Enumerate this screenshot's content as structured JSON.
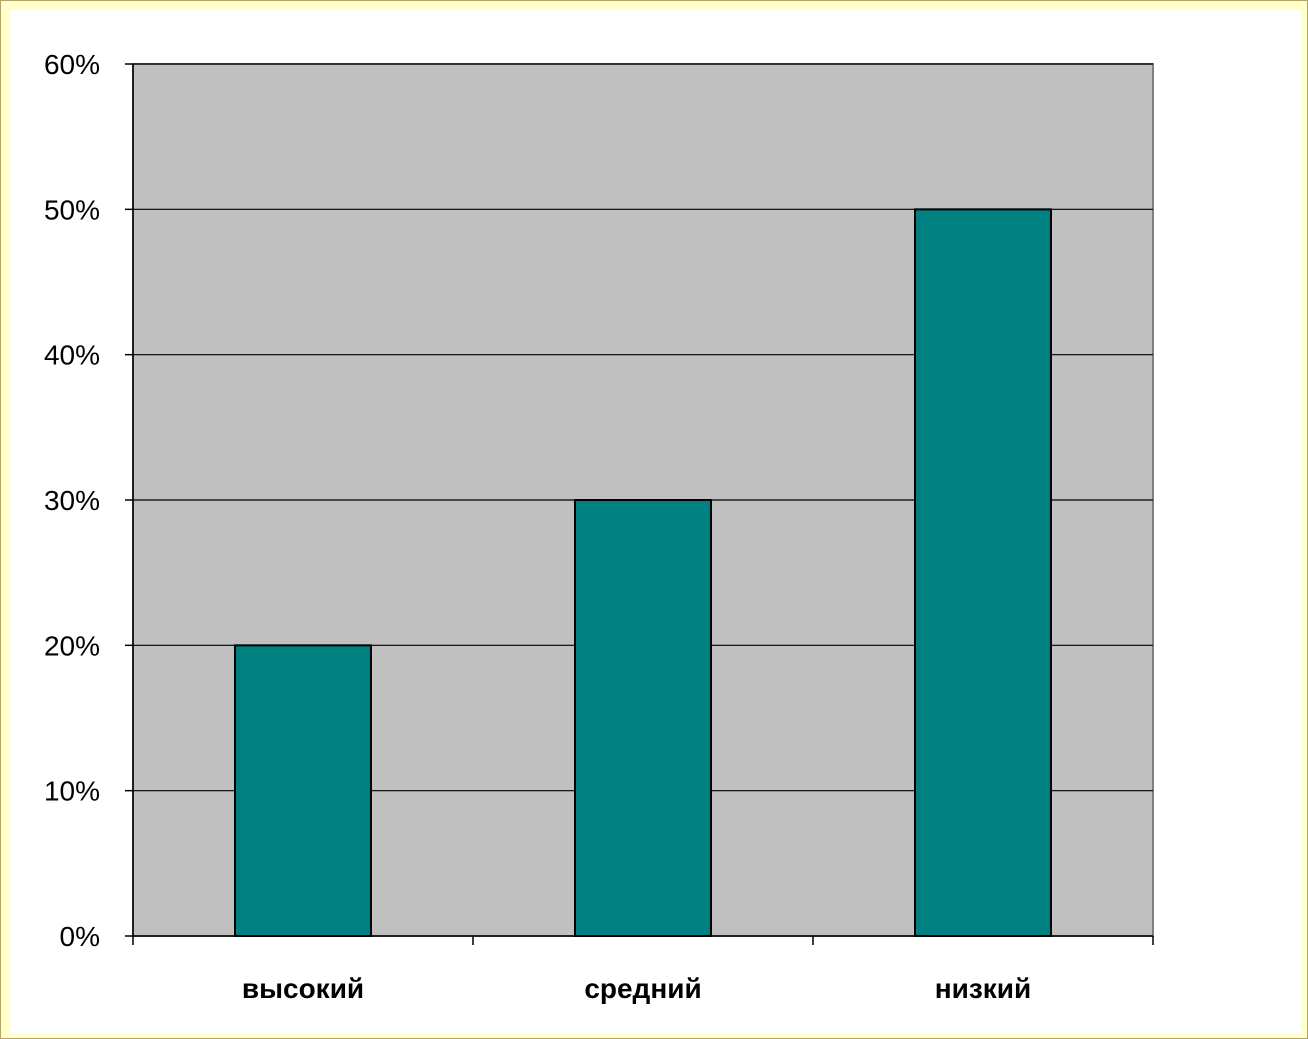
{
  "chart_data": {
    "type": "bar",
    "categories": [
      "высокий",
      "средний",
      "низкий"
    ],
    "values": [
      20,
      30,
      50
    ],
    "ylim": [
      0,
      60
    ],
    "yticks": [
      0,
      10,
      20,
      30,
      40,
      50,
      60
    ],
    "ytick_labels": [
      "0%",
      "10%",
      "20%",
      "30%",
      "40%",
      "50%",
      "60%"
    ],
    "grid": true,
    "legend": "none"
  },
  "colors": {
    "bar": "#008080",
    "plot_bg": "#c0c0c0",
    "outer_bg": "#ffffc8",
    "grid": "#000000"
  }
}
